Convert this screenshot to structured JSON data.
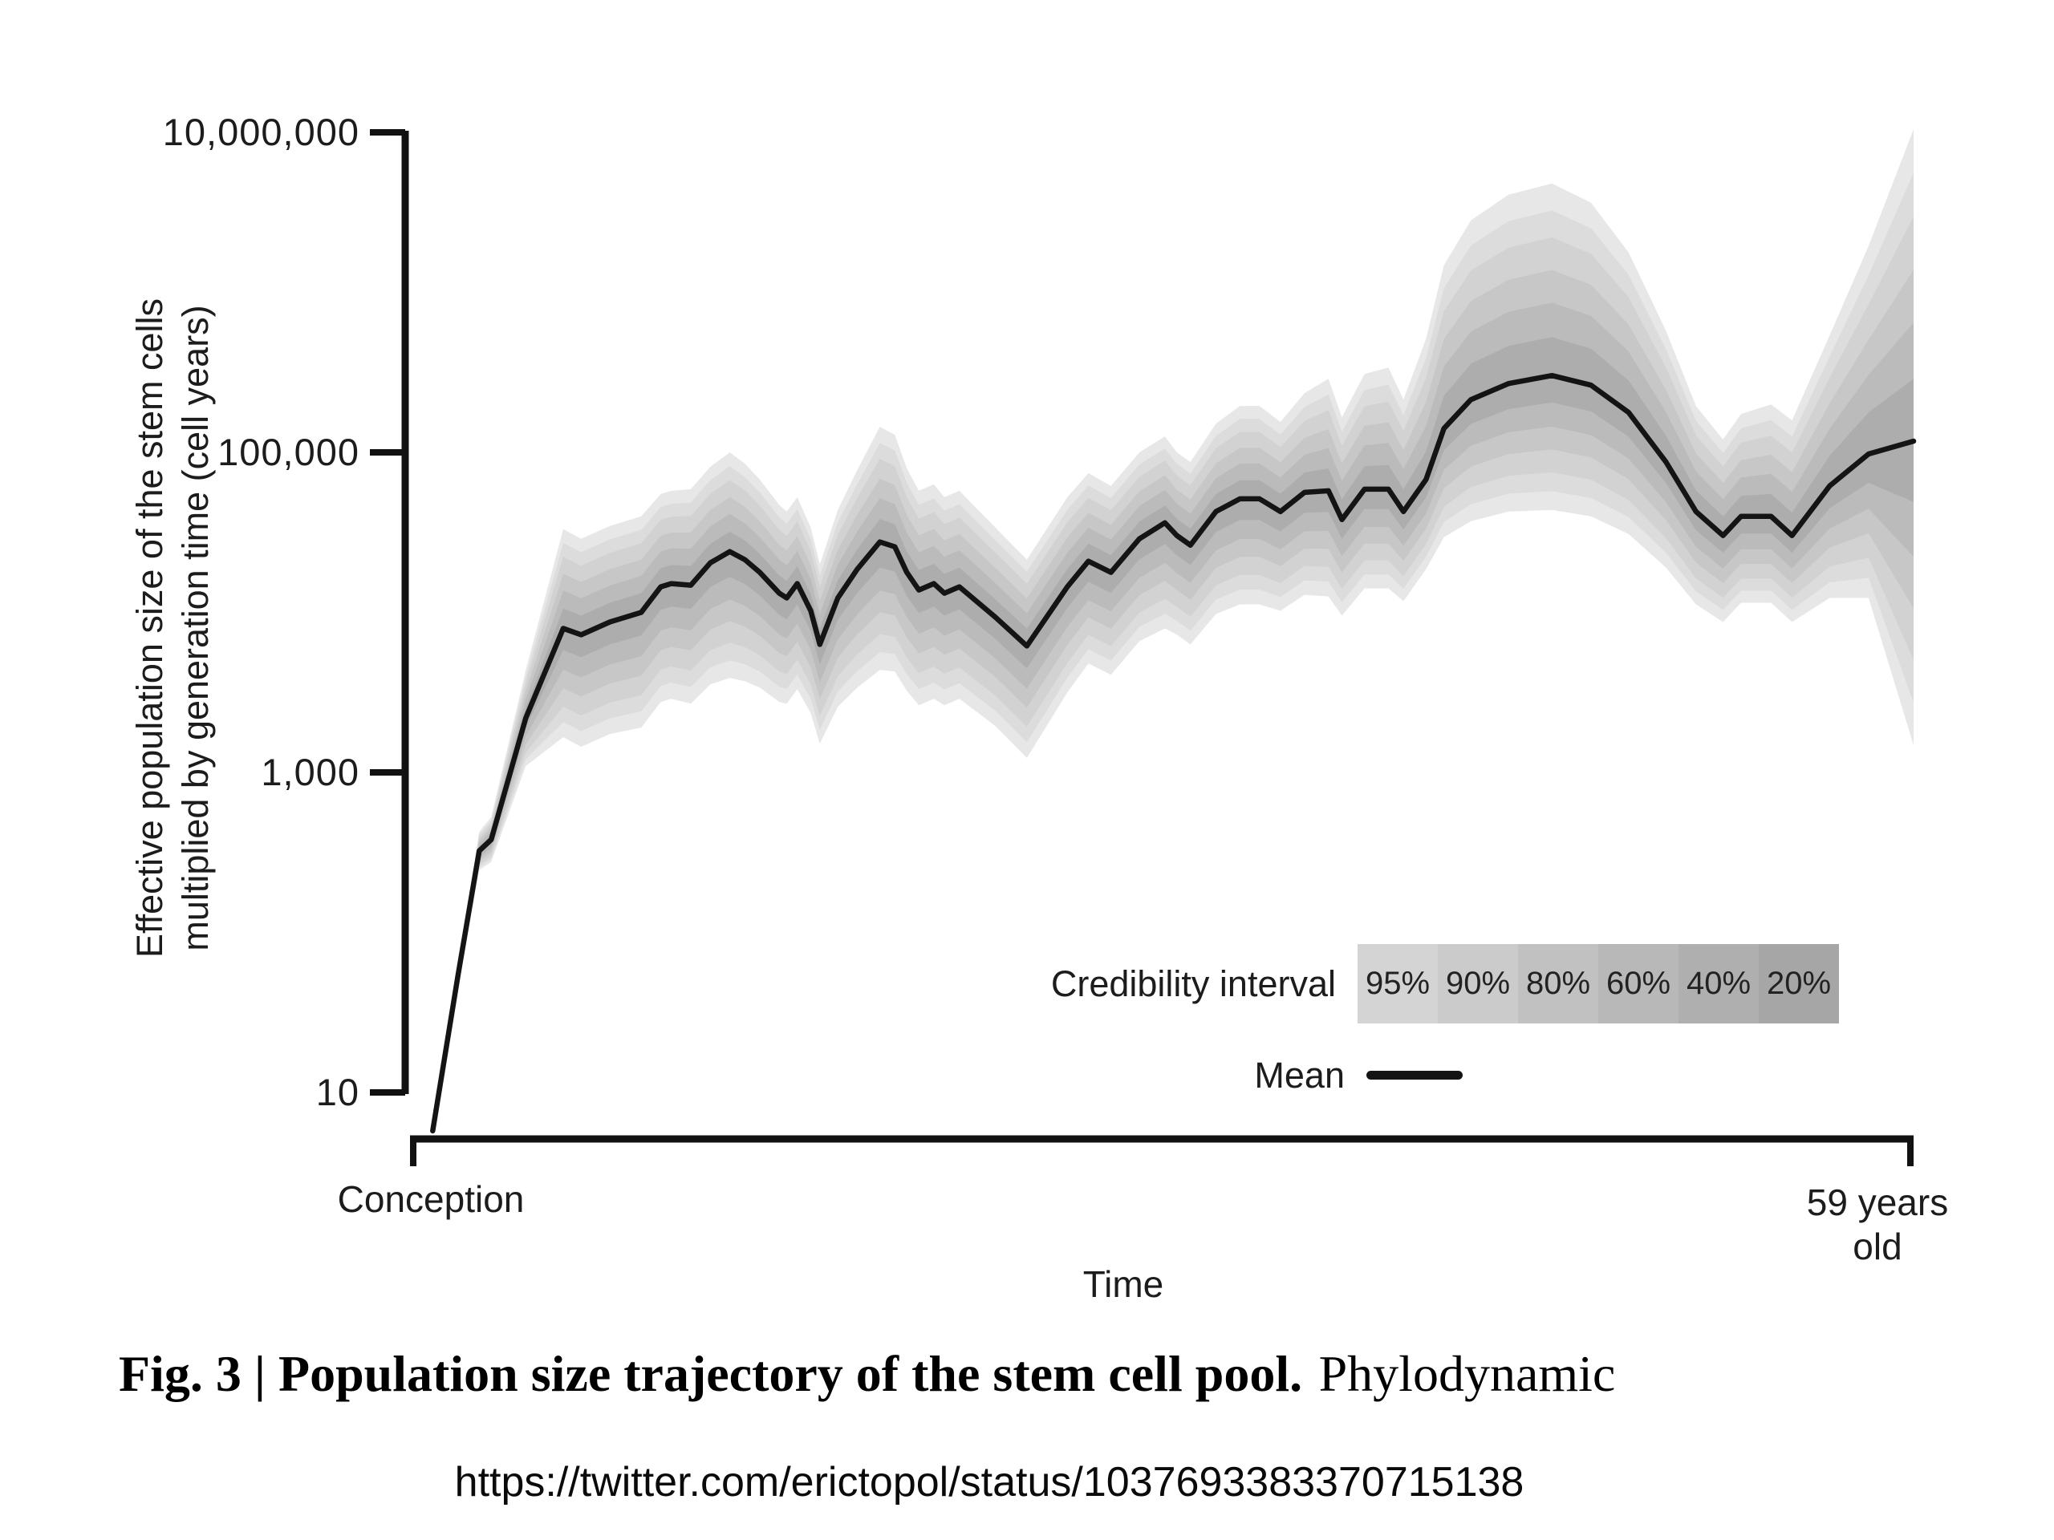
{
  "figure": {
    "caption_bold": "Fig. 3 | Population size trajectory of the stem cell pool.",
    "caption_regular": "Phylodynamic",
    "source_url": "https://twitter.com/erictopol/status/1037693383370715138"
  },
  "chart_data": {
    "type": "area",
    "title": "",
    "xlabel": "Time",
    "ylabel_line1": "Effective population size of the stem cells",
    "ylabel_line2": "multiplied by generation time (cell years)",
    "y_scale": "log",
    "ylim_log10": [
      1,
      7
    ],
    "y_ticks": [
      {
        "label": "10,000,000",
        "value": 10000000,
        "log10": 7
      },
      {
        "label": "100,000",
        "value": 100000,
        "log10": 5
      },
      {
        "label": "1,000",
        "value": 1000,
        "log10": 3
      },
      {
        "label": "10",
        "value": 10,
        "log10": 1
      }
    ],
    "x_axis": {
      "start_label": "Conception",
      "end_label_line1": "59 years",
      "end_label_line2": "old"
    },
    "legend": {
      "interval_label": "Credibility interval",
      "mean_label": "Mean",
      "position": "inside lower right",
      "levels": [
        {
          "label": "95%",
          "color": "#d4d4d4"
        },
        {
          "label": "90%",
          "color": "#cbcbcb"
        },
        {
          "label": "80%",
          "color": "#c1c1c1"
        },
        {
          "label": "60%",
          "color": "#b8b8b8"
        },
        {
          "label": "40%",
          "color": "#afafaf"
        },
        {
          "label": "20%",
          "color": "#a6a6a6"
        }
      ]
    },
    "mean_color": "#141414",
    "band_colors": [
      "#e7e7e7",
      "#dcdcdc",
      "#d2d2d2",
      "#c7c7c7",
      "#bbbbbb",
      "#adadad"
    ],
    "band_scale": [
      1.0,
      0.86,
      0.72,
      0.55,
      0.38,
      0.2
    ],
    "series": {
      "units": "cell years; mean and 95% credibility half-widths given as log10 values; t runs 0 (conception) to 1 (59 years old)",
      "t": [
        0.013,
        0.03,
        0.044,
        0.052,
        0.075,
        0.1,
        0.112,
        0.131,
        0.152,
        0.165,
        0.172,
        0.185,
        0.198,
        0.211,
        0.221,
        0.231,
        0.244,
        0.249,
        0.256,
        0.265,
        0.271,
        0.283,
        0.296,
        0.311,
        0.321,
        0.329,
        0.337,
        0.347,
        0.354,
        0.364,
        0.388,
        0.409,
        0.436,
        0.45,
        0.465,
        0.484,
        0.501,
        0.509,
        0.518,
        0.535,
        0.551,
        0.564,
        0.578,
        0.594,
        0.61,
        0.619,
        0.634,
        0.65,
        0.66,
        0.675,
        0.687,
        0.705,
        0.73,
        0.759,
        0.785,
        0.81,
        0.835,
        0.855,
        0.873,
        0.885,
        0.905,
        0.919,
        0.944,
        0.97,
        1.0
      ],
      "mean_log10": [
        0.76,
        1.74,
        2.51,
        2.58,
        3.34,
        3.9,
        3.86,
        3.94,
        4.0,
        4.16,
        4.18,
        4.17,
        4.31,
        4.38,
        4.33,
        4.25,
        4.12,
        4.09,
        4.18,
        4.01,
        3.8,
        4.09,
        4.27,
        4.44,
        4.41,
        4.25,
        4.14,
        4.18,
        4.12,
        4.16,
        3.97,
        3.79,
        4.16,
        4.32,
        4.25,
        4.46,
        4.56,
        4.48,
        4.42,
        4.63,
        4.71,
        4.71,
        4.63,
        4.75,
        4.76,
        4.58,
        4.77,
        4.77,
        4.63,
        4.83,
        5.15,
        5.33,
        5.43,
        5.48,
        5.42,
        5.25,
        4.94,
        4.63,
        4.48,
        4.6,
        4.6,
        4.48,
        4.79,
        4.99,
        5.07
      ],
      "up95_log10": [
        0.03,
        0.06,
        0.12,
        0.14,
        0.3,
        0.62,
        0.6,
        0.6,
        0.6,
        0.58,
        0.58,
        0.6,
        0.6,
        0.62,
        0.6,
        0.58,
        0.55,
        0.54,
        0.54,
        0.52,
        0.5,
        0.55,
        0.62,
        0.72,
        0.7,
        0.65,
        0.62,
        0.62,
        0.6,
        0.6,
        0.56,
        0.54,
        0.56,
        0.55,
        0.54,
        0.54,
        0.54,
        0.52,
        0.52,
        0.55,
        0.58,
        0.58,
        0.56,
        0.62,
        0.7,
        0.64,
        0.72,
        0.76,
        0.7,
        0.88,
        1.02,
        1.12,
        1.18,
        1.2,
        1.14,
        1.0,
        0.82,
        0.66,
        0.6,
        0.64,
        0.7,
        0.72,
        0.94,
        1.3,
        1.95
      ],
      "down95_log10": [
        0.03,
        0.06,
        0.12,
        0.14,
        0.3,
        0.68,
        0.7,
        0.7,
        0.72,
        0.72,
        0.72,
        0.74,
        0.76,
        0.79,
        0.76,
        0.72,
        0.68,
        0.66,
        0.66,
        0.64,
        0.62,
        0.68,
        0.74,
        0.8,
        0.78,
        0.74,
        0.72,
        0.72,
        0.7,
        0.7,
        0.68,
        0.7,
        0.66,
        0.64,
        0.64,
        0.64,
        0.66,
        0.62,
        0.62,
        0.64,
        0.66,
        0.66,
        0.62,
        0.64,
        0.66,
        0.6,
        0.62,
        0.62,
        0.56,
        0.56,
        0.68,
        0.76,
        0.8,
        0.84,
        0.82,
        0.76,
        0.66,
        0.58,
        0.54,
        0.54,
        0.54,
        0.54,
        0.7,
        0.9,
        1.9
      ]
    }
  }
}
